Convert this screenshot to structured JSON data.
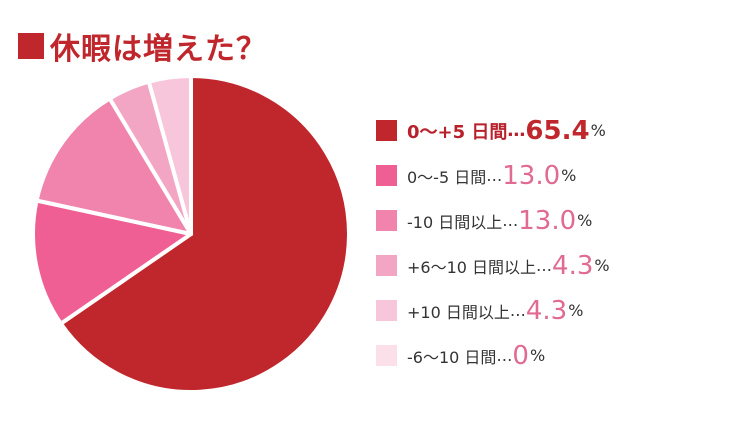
{
  "title": "休暇は増えた？",
  "colors": {
    "accent": "#c0272d",
    "value_text": "#e06a92",
    "slice_border": "#ffffff"
  },
  "chart_data": {
    "type": "pie",
    "title": "休暇は増えた？",
    "unit": "%",
    "start_angle_deg": 0,
    "direction": "clockwise",
    "slices": [
      {
        "label": "0〜+5 日間",
        "value": "65.4",
        "color": "#c0272d"
      },
      {
        "label": "0〜-5 日間",
        "value": "13.0",
        "color": "#ef5f94"
      },
      {
        "label": "-10 日間以上",
        "value": "13.0",
        "color": "#f084ad"
      },
      {
        "label": "+6〜10 日間以上",
        "value": "4.3",
        "color": "#f3a5c4"
      },
      {
        "label": "+10 日間以上",
        "value": "4.3",
        "color": "#f8c6da"
      },
      {
        "label": "-6〜10 日間",
        "value": "0",
        "color": "#fbe0ea"
      }
    ]
  },
  "legend_separator": "…"
}
